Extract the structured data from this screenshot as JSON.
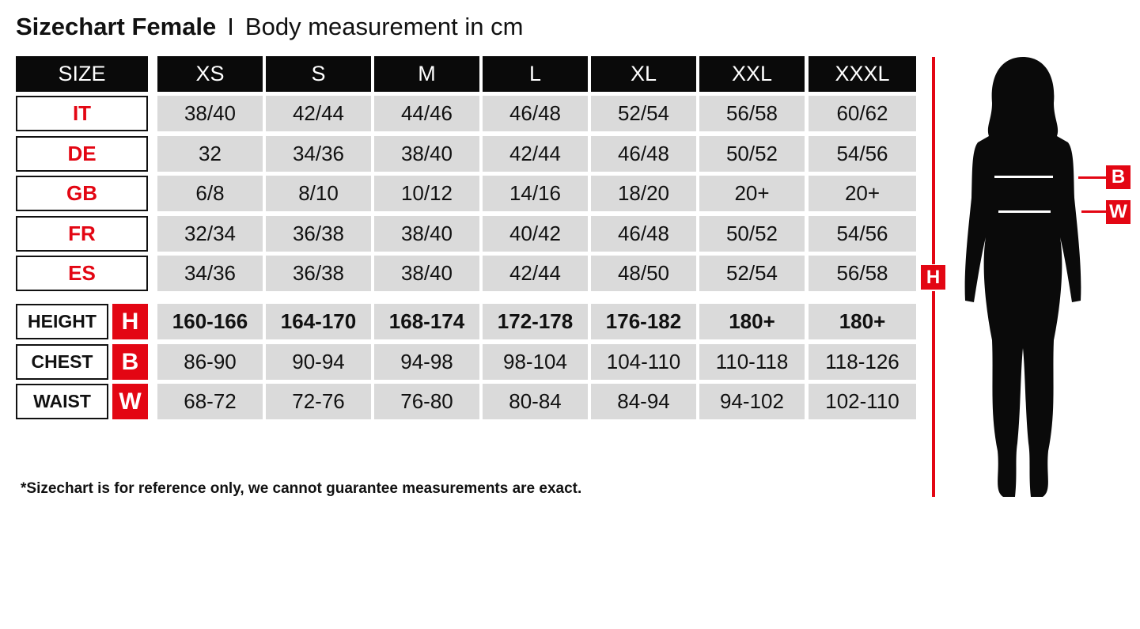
{
  "title": {
    "main": "Sizechart Female",
    "separator": "I",
    "subtitle": "Body measurement in cm"
  },
  "header": {
    "label": "SIZE",
    "sizes": [
      "XS",
      "S",
      "M",
      "L",
      "XL",
      "XXL",
      "XXXL"
    ]
  },
  "country_rows": [
    {
      "label": "IT",
      "values": [
        "38/40",
        "42/44",
        "44/46",
        "46/48",
        "52/54",
        "56/58",
        "60/62"
      ]
    },
    {
      "label": "DE",
      "values": [
        "32",
        "34/36",
        "38/40",
        "42/44",
        "46/48",
        "50/52",
        "54/56"
      ]
    },
    {
      "label": "GB",
      "values": [
        "6/8",
        "8/10",
        "10/12",
        "14/16",
        "18/20",
        "20+",
        "20+"
      ]
    },
    {
      "label": "FR",
      "values": [
        "32/34",
        "36/38",
        "38/40",
        "40/42",
        "46/48",
        "50/52",
        "54/56"
      ]
    },
    {
      "label": "ES",
      "values": [
        "34/36",
        "36/38",
        "38/40",
        "42/44",
        "48/50",
        "52/54",
        "56/58"
      ]
    }
  ],
  "measure_rows": [
    {
      "label": "HEIGHT",
      "code": "H",
      "bold": true,
      "values": [
        "160-166",
        "164-170",
        "168-174",
        "172-178",
        "176-182",
        "180+",
        "180+"
      ]
    },
    {
      "label": "CHEST",
      "code": "B",
      "bold": false,
      "values": [
        "86-90",
        "90-94",
        "94-98",
        "98-104",
        "104-110",
        "110-118",
        "118-126"
      ]
    },
    {
      "label": "WAIST",
      "code": "W",
      "bold": false,
      "values": [
        "68-72",
        "72-76",
        "76-80",
        "80-84",
        "84-94",
        "94-102",
        "102-110"
      ]
    }
  ],
  "figure": {
    "height_marker": "H",
    "chest_marker": "B",
    "waist_marker": "W"
  },
  "note": "*Sizechart is for reference only, we cannot guarantee measurements are exact.",
  "colors": {
    "accent_red": "#e30613",
    "header_black": "#0a0a0a",
    "cell_gray": "#dadada"
  }
}
